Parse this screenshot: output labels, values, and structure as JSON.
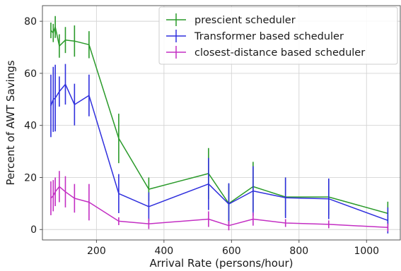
{
  "chart_data": {
    "type": "line",
    "title": "",
    "xlabel": "Arrival Rate (persons/hour)",
    "ylabel": "Percent of AWT Savings",
    "xlim": [
      40,
      1100
    ],
    "ylim": [
      -4,
      86
    ],
    "xticks": [
      200,
      400,
      600,
      800,
      1000
    ],
    "yticks": [
      0,
      20,
      40,
      60,
      80
    ],
    "grid": true,
    "legend_position": "top-right",
    "x": [
      65,
      72,
      78,
      90,
      108,
      135,
      178,
      266,
      355,
      532,
      592,
      664,
      760,
      888,
      1063
    ],
    "series": [
      {
        "name": "prescient scheduler",
        "color": "#2a9a2a",
        "values": [
          76.5,
          75.5,
          77.8,
          70.5,
          72.8,
          72.4,
          71.0,
          35.0,
          15.5,
          21.5,
          10.0,
          16.5,
          12.5,
          12.5,
          6.2
        ],
        "errors": [
          3.0,
          3.5,
          4.2,
          4.5,
          5.0,
          6.0,
          5.2,
          9.5,
          4.5,
          9.8,
          7.5,
          9.5,
          7.5,
          7.0,
          4.5
        ]
      },
      {
        "name": "Transformer based scheduler",
        "color": "#2f2fdd",
        "values": [
          47.5,
          50.0,
          50.5,
          53.0,
          55.8,
          48.0,
          51.5,
          13.8,
          8.8,
          17.5,
          9.8,
          14.8,
          12.2,
          11.8,
          3.5
        ],
        "errors": [
          12.0,
          12.5,
          12.8,
          5.8,
          7.8,
          8.0,
          8.0,
          7.5,
          5.5,
          10.0,
          8.0,
          9.5,
          7.8,
          7.8,
          5.0
        ]
      },
      {
        "name": "closest-distance based scheduler",
        "color": "#c32ec3",
        "values": [
          12.0,
          13.0,
          14.5,
          16.5,
          14.5,
          12.0,
          10.5,
          3.2,
          2.2,
          4.0,
          1.5,
          4.0,
          2.5,
          2.0,
          0.8
        ],
        "errors": [
          6.5,
          6.0,
          5.5,
          6.0,
          6.0,
          5.5,
          7.0,
          1.5,
          2.0,
          3.0,
          1.8,
          2.5,
          1.5,
          1.5,
          1.5
        ]
      }
    ]
  }
}
